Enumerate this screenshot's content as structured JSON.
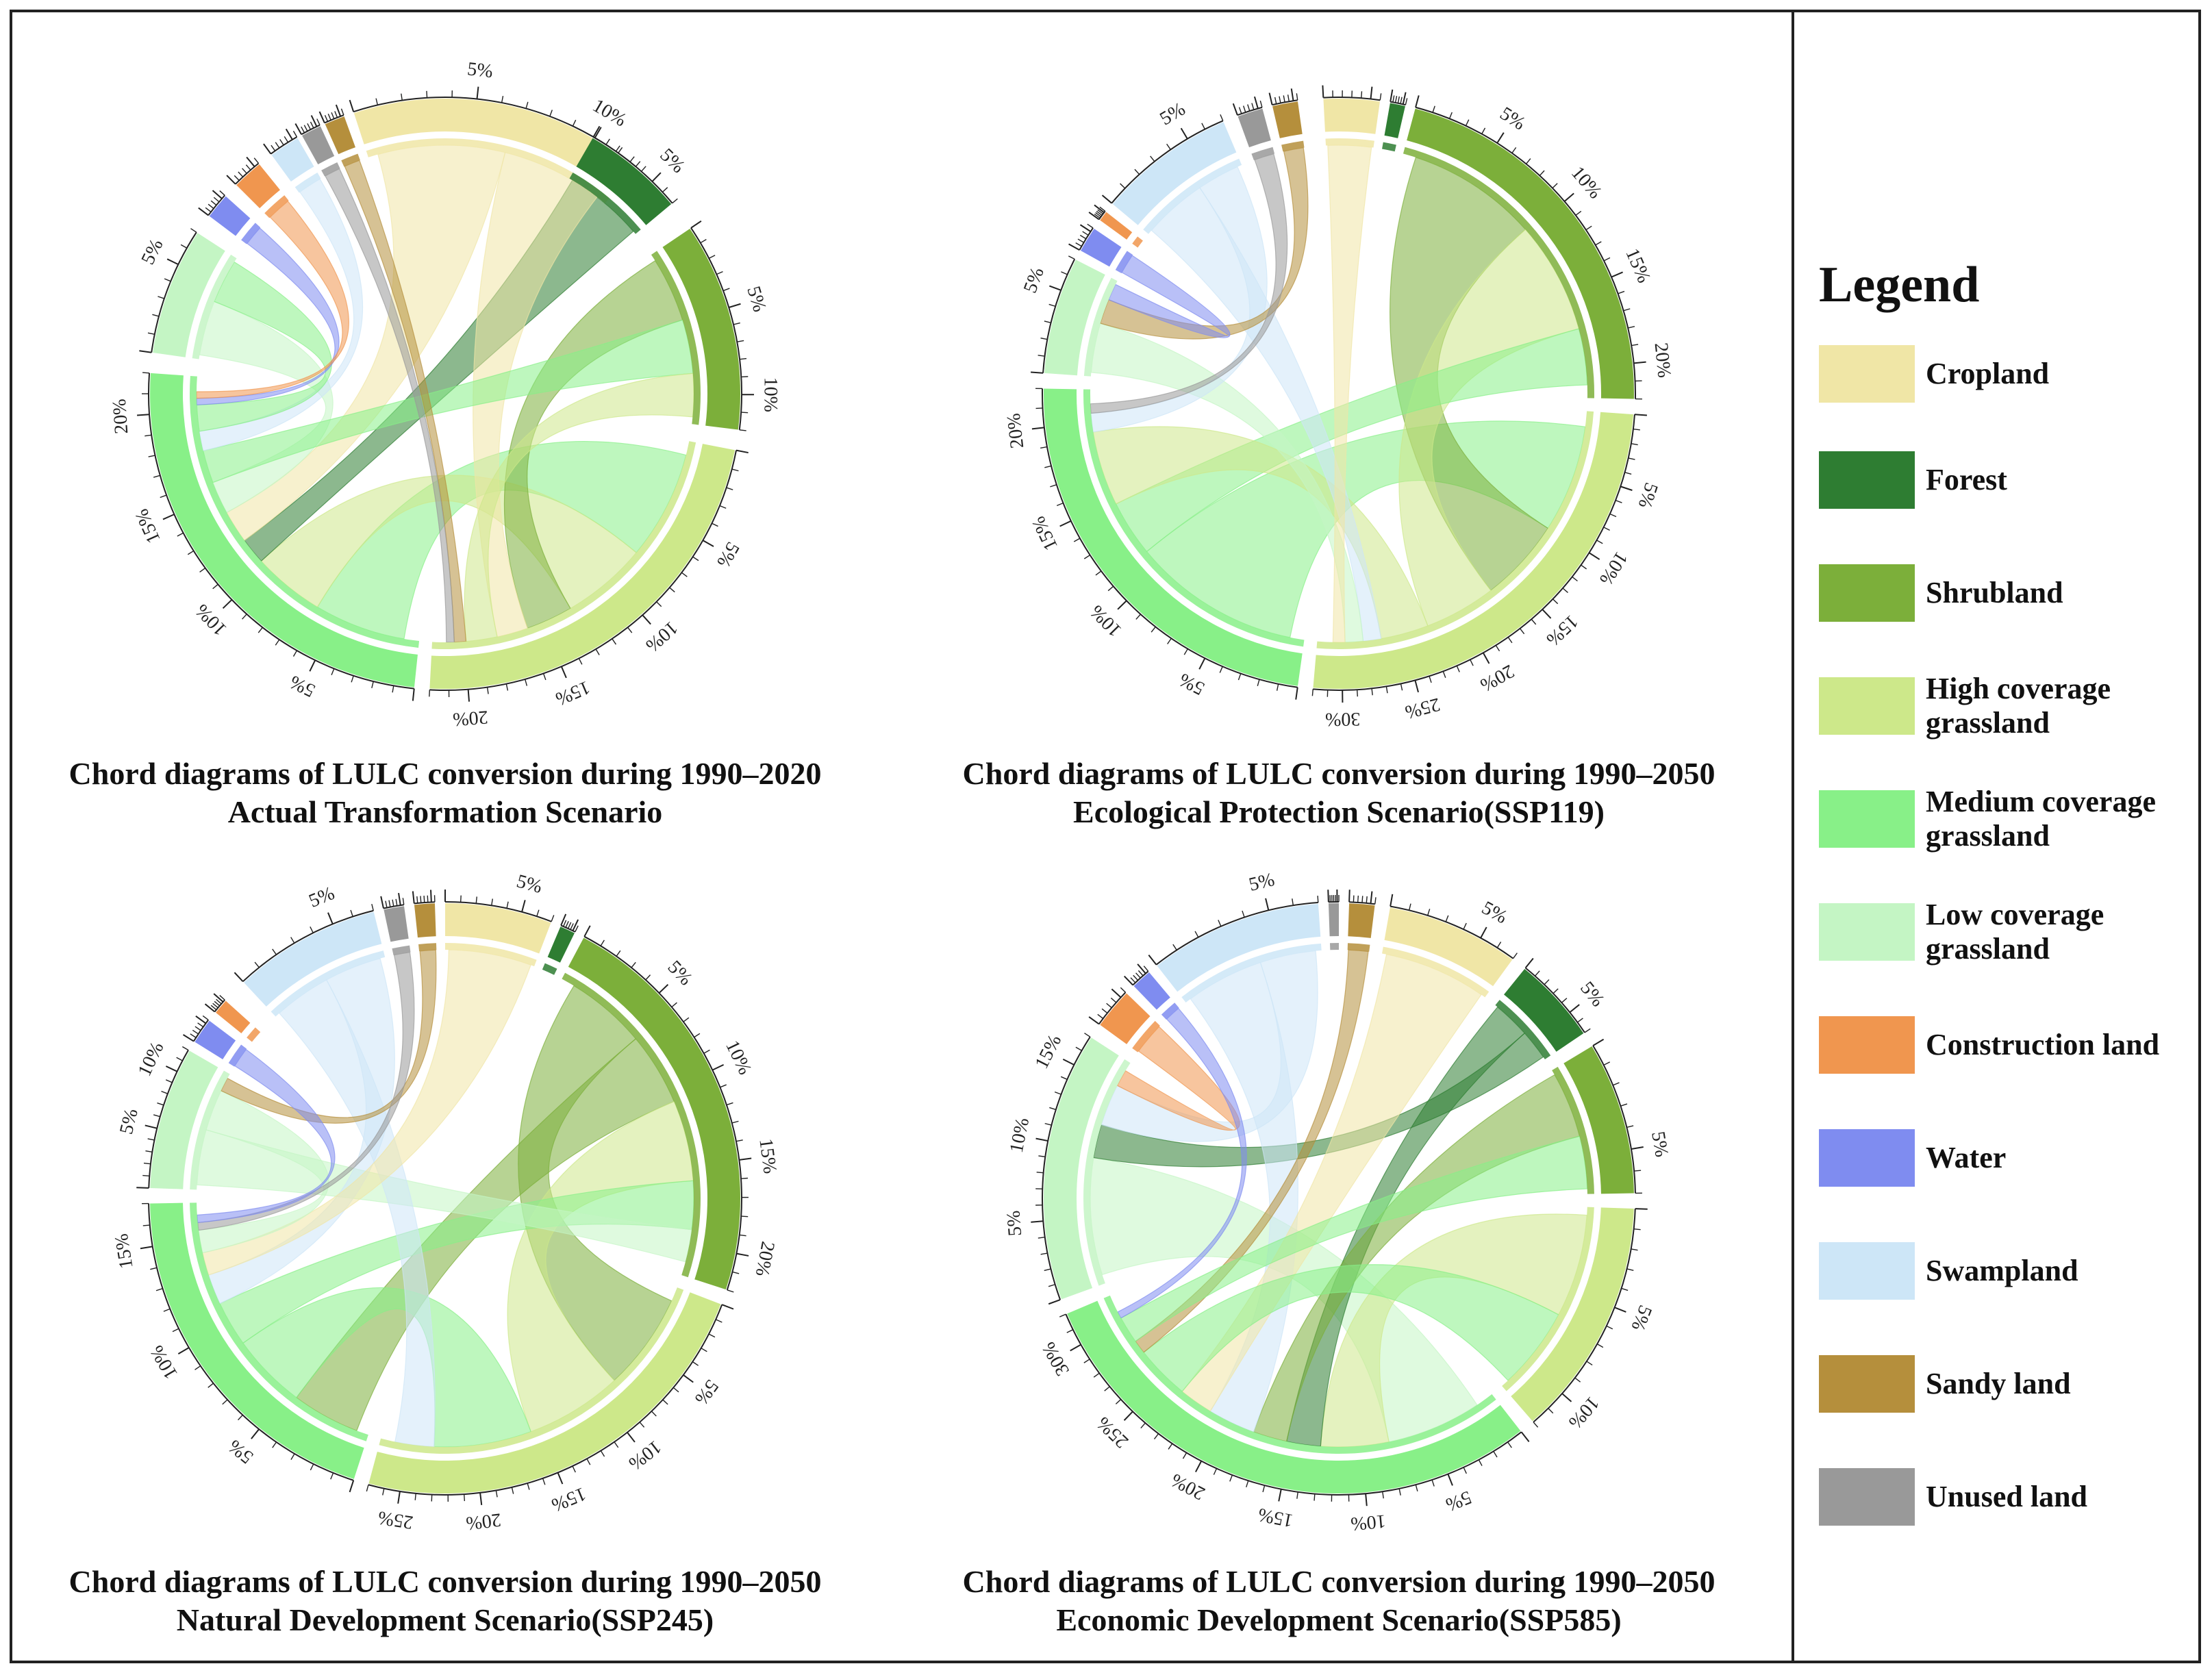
{
  "legend": {
    "title": "Legend",
    "items": [
      {
        "label": "Cropland",
        "color": "#f0e6a6",
        "line2": ""
      },
      {
        "label": "Forest",
        "color": "#2e7d32",
        "line2": ""
      },
      {
        "label": "Shrubland",
        "color": "#7caf3a",
        "line2": ""
      },
      {
        "label": "High coverage",
        "line2": "grassland",
        "color": "#cde88a"
      },
      {
        "label": "Medium coverage",
        "line2": "grassland",
        "color": "#88f088"
      },
      {
        "label": "Low coverage",
        "line2": "grassland",
        "color": "#c4f5c4"
      },
      {
        "label": "Construction land",
        "color": "#f0964f",
        "line2": ""
      },
      {
        "label": "Water",
        "color": "#7f8cf0",
        "line2": ""
      },
      {
        "label": "Swampland",
        "color": "#cde6f7",
        "line2": ""
      },
      {
        "label": "Sandy land",
        "color": "#b58f3c",
        "line2": ""
      },
      {
        "label": "Unused land",
        "color": "#999999",
        "line2": ""
      }
    ]
  },
  "chart_data": [
    {
      "type": "chord",
      "title": "Chord diagrams of LULC conversion during 1990–2020",
      "subtitle": "Actual Transformation Scenario",
      "tick_step_pct": 1,
      "sectors": [
        {
          "name": "Cropland",
          "start_deg": 342,
          "sweep_deg": 58,
          "labels": [
            5,
            10
          ]
        },
        {
          "name": "Forest",
          "start_deg": 30,
          "sweep_deg": 20,
          "labels": [
            5
          ]
        },
        {
          "name": "Shrubland",
          "start_deg": 56,
          "sweep_deg": 41,
          "labels": [
            5,
            10
          ]
        },
        {
          "name": "High coverage grassland",
          "start_deg": 101,
          "sweep_deg": 82,
          "labels": [
            5,
            10,
            15,
            20
          ]
        },
        {
          "name": "Medium coverage grassland",
          "start_deg": 186,
          "sweep_deg": 88,
          "labels": [
            5,
            10,
            15,
            20
          ]
        },
        {
          "name": "Low coverage grassland",
          "start_deg": 278,
          "sweep_deg": 25,
          "labels": [
            5
          ]
        },
        {
          "name": "Water",
          "start_deg": 307,
          "sweep_deg": 5,
          "labels": []
        },
        {
          "name": "Construction land",
          "start_deg": 315,
          "sweep_deg": 6,
          "labels": []
        },
        {
          "name": "Swampland",
          "start_deg": 324,
          "sweep_deg": 6,
          "labels": []
        },
        {
          "name": "Unused land",
          "start_deg": 331,
          "sweep_deg": 4,
          "labels": []
        },
        {
          "name": "Sandy land",
          "start_deg": 336,
          "sweep_deg": 4,
          "labels": []
        }
      ],
      "flows": [
        {
          "from": "Medium coverage grassland",
          "to": "High coverage grassland",
          "value": 14
        },
        {
          "from": "High coverage grassland",
          "to": "Medium coverage grassland",
          "value": 11
        },
        {
          "from": "Shrubland",
          "to": "High coverage grassland",
          "value": 6
        },
        {
          "from": "Forest",
          "to": "Medium coverage grassland",
          "value": 4
        },
        {
          "from": "Cropland",
          "to": "Medium coverage grassland",
          "value": 5
        },
        {
          "from": "Cropland",
          "to": "High coverage grassland",
          "value": 4
        },
        {
          "from": "Low coverage grassland",
          "to": "Medium coverage grassland",
          "value": 5
        },
        {
          "from": "Medium coverage grassland",
          "to": "Shrubland",
          "value": 5
        },
        {
          "from": "Swampland",
          "to": "Medium coverage grassland",
          "value": 3
        },
        {
          "from": "Medium coverage grassland",
          "to": "Low coverage grassland",
          "value": 4
        },
        {
          "from": "High coverage grassland",
          "to": "Shrubland",
          "value": 4
        },
        {
          "from": "Sandy land",
          "to": "High coverage grassland",
          "value": 1.5
        },
        {
          "from": "Water",
          "to": "Medium coverage grassland",
          "value": 1
        },
        {
          "from": "Construction land",
          "to": "Medium coverage grassland",
          "value": 1
        },
        {
          "from": "Unused land",
          "to": "High coverage grassland",
          "value": 1
        }
      ]
    },
    {
      "type": "chord",
      "title": "Chord diagrams of LULC conversion during 1990–2050",
      "subtitle": "Ecological Protection Scenario(SSP119)",
      "tick_step_pct": 1,
      "sectors": [
        {
          "name": "Cropland",
          "start_deg": 357,
          "sweep_deg": 11,
          "labels": []
        },
        {
          "name": "Forest",
          "start_deg": 10,
          "sweep_deg": 3,
          "labels": []
        },
        {
          "name": "Shrubland",
          "start_deg": 15,
          "sweep_deg": 76,
          "labels": [
            5,
            10,
            15,
            20
          ]
        },
        {
          "name": "High coverage grassland",
          "start_deg": 94,
          "sweep_deg": 91,
          "labels": [
            5,
            10,
            15,
            20,
            25,
            30
          ]
        },
        {
          "name": "Medium coverage grassland",
          "start_deg": 188,
          "sweep_deg": 83,
          "labels": [
            5,
            10,
            15,
            20
          ]
        },
        {
          "name": "Low coverage grassland",
          "start_deg": 274,
          "sweep_deg": 23,
          "labels": [
            5
          ]
        },
        {
          "name": "Water",
          "start_deg": 299,
          "sweep_deg": 5,
          "labels": []
        },
        {
          "name": "Construction land",
          "start_deg": 306,
          "sweep_deg": 2,
          "labels": []
        },
        {
          "name": "Swampland",
          "start_deg": 310,
          "sweep_deg": 27,
          "labels": [
            5
          ]
        },
        {
          "name": "Unused land",
          "start_deg": 340,
          "sweep_deg": 5,
          "labels": []
        },
        {
          "name": "Sandy land",
          "start_deg": 347,
          "sweep_deg": 5,
          "labels": []
        }
      ],
      "flows": [
        {
          "from": "Medium coverage grassland",
          "to": "High coverage grassland",
          "value": 18
        },
        {
          "from": "Shrubland",
          "to": "High coverage grassland",
          "value": 14
        },
        {
          "from": "High coverage grassland",
          "to": "Shrubland",
          "value": 12
        },
        {
          "from": "Medium coverage grassland",
          "to": "Shrubland",
          "value": 6
        },
        {
          "from": "High coverage grassland",
          "to": "Medium coverage grassland",
          "value": 8
        },
        {
          "from": "Swampland",
          "to": "High coverage grassland",
          "value": 3
        },
        {
          "from": "Low coverage grassland",
          "to": "High coverage grassland",
          "value": 3
        },
        {
          "from": "Swampland",
          "to": "Medium coverage grassland",
          "value": 2
        },
        {
          "from": "Sandy land",
          "to": "Low coverage grassland",
          "value": 1.5
        },
        {
          "from": "Cropland",
          "to": "High coverage grassland",
          "value": 2
        },
        {
          "from": "Unused land",
          "to": "Medium coverage grassland",
          "value": 1
        },
        {
          "from": "Water",
          "to": "Low coverage grassland",
          "value": 1
        }
      ]
    },
    {
      "type": "chord",
      "title": "Chord diagrams of LULC conversion during 1990–2050",
      "subtitle": "Natural Development Scenario(SSP245)",
      "tick_step_pct": 1,
      "sectors": [
        {
          "name": "Swampland",
          "start_deg": 317,
          "sweep_deg": 29,
          "labels": [
            5
          ]
        },
        {
          "name": "Unused land",
          "start_deg": 348,
          "sweep_deg": 4,
          "labels": []
        },
        {
          "name": "Sandy land",
          "start_deg": 354,
          "sweep_deg": 4,
          "labels": []
        },
        {
          "name": "Cropland",
          "start_deg": 360,
          "sweep_deg": 21,
          "labels": [
            5
          ]
        },
        {
          "name": "Forest",
          "start_deg": 23,
          "sweep_deg": 3,
          "labels": []
        },
        {
          "name": "Shrubland",
          "start_deg": 28,
          "sweep_deg": 80,
          "labels": [
            5,
            10,
            15,
            20
          ]
        },
        {
          "name": "High coverage grassland",
          "start_deg": 111,
          "sweep_deg": 84,
          "labels": [
            5,
            10,
            15,
            20,
            25
          ]
        },
        {
          "name": "Medium coverage grassland",
          "start_deg": 198,
          "sweep_deg": 71,
          "labels": [
            5,
            10,
            15
          ]
        },
        {
          "name": "Low coverage grassland",
          "start_deg": 272,
          "sweep_deg": 28,
          "labels": [
            5,
            10
          ]
        },
        {
          "name": "Water",
          "start_deg": 302,
          "sweep_deg": 5,
          "labels": []
        },
        {
          "name": "Construction land",
          "start_deg": 309,
          "sweep_deg": 3,
          "labels": []
        }
      ],
      "flows": [
        {
          "from": "Shrubland",
          "to": "High coverage grassland",
          "value": 10
        },
        {
          "from": "Shrubland",
          "to": "Medium coverage grassland",
          "value": 9
        },
        {
          "from": "High coverage grassland",
          "to": "Shrubland",
          "value": 10
        },
        {
          "from": "Medium coverage grassland",
          "to": "High coverage grassland",
          "value": 10
        },
        {
          "from": "Medium coverage grassland",
          "to": "Shrubland",
          "value": 6
        },
        {
          "from": "Low coverage grassland",
          "to": "Shrubland",
          "value": 4
        },
        {
          "from": "Swampland",
          "to": "High coverage grassland",
          "value": 4
        },
        {
          "from": "Swampland",
          "to": "Medium coverage grassland",
          "value": 4
        },
        {
          "from": "Cropland",
          "to": "Medium coverage grassland",
          "value": 3
        },
        {
          "from": "Low coverage grassland",
          "to": "Medium coverage grassland",
          "value": 3
        },
        {
          "from": "Sandy land",
          "to": "Low coverage grassland",
          "value": 1
        },
        {
          "from": "Unused land",
          "to": "Medium coverage grassland",
          "value": 1
        },
        {
          "from": "Water",
          "to": "Medium coverage grassland",
          "value": 1
        }
      ]
    },
    {
      "type": "chord",
      "title": "Chord diagrams of LULC conversion during 1990–2050",
      "subtitle": "Economic Development Scenario(SSP585)",
      "tick_step_pct": 1,
      "sectors": [
        {
          "name": "Swampland",
          "start_deg": 322,
          "sweep_deg": 34,
          "labels": [
            5
          ]
        },
        {
          "name": "Unused land",
          "start_deg": 358,
          "sweep_deg": 2,
          "labels": []
        },
        {
          "name": "Sandy land",
          "start_deg": 2,
          "sweep_deg": 5,
          "labels": []
        },
        {
          "name": "Cropland",
          "start_deg": 10,
          "sweep_deg": 26,
          "labels": [
            5
          ]
        },
        {
          "name": "Forest",
          "start_deg": 39,
          "sweep_deg": 17,
          "labels": [
            5
          ]
        },
        {
          "name": "Shrubland",
          "start_deg": 59,
          "sweep_deg": 30,
          "labels": [
            5
          ]
        },
        {
          "name": "High coverage grassland",
          "start_deg": 92,
          "sweep_deg": 47,
          "labels": [
            5,
            10
          ]
        },
        {
          "name": "Medium coverage grassland",
          "start_deg": 142,
          "sweep_deg": 105,
          "labels": [
            5,
            10,
            15,
            20,
            25,
            30
          ]
        },
        {
          "name": "Low coverage grassland",
          "start_deg": 250,
          "sweep_deg": 53,
          "labels": [
            5,
            10,
            15
          ]
        },
        {
          "name": "Construction land",
          "start_deg": 306,
          "sweep_deg": 8,
          "labels": []
        },
        {
          "name": "Water",
          "start_deg": 316,
          "sweep_deg": 4,
          "labels": []
        }
      ],
      "flows": [
        {
          "from": "Low coverage grassland",
          "to": "Medium coverage grassland",
          "value": 14
        },
        {
          "from": "High coverage grassland",
          "to": "Medium coverage grassland",
          "value": 10
        },
        {
          "from": "Forest",
          "to": "Medium coverage grassland",
          "value": 5
        },
        {
          "from": "Forest",
          "to": "Low coverage grassland",
          "value": 4
        },
        {
          "from": "Shrubland",
          "to": "Medium coverage grassland",
          "value": 5
        },
        {
          "from": "Swampland",
          "to": "Medium coverage grassland",
          "value": 7
        },
        {
          "from": "Swampland",
          "to": "Low coverage grassland",
          "value": 5
        },
        {
          "from": "Cropland",
          "to": "Medium coverage grassland",
          "value": 5
        },
        {
          "from": "Medium coverage grassland",
          "to": "High coverage grassland",
          "value": 8
        },
        {
          "from": "Sandy land",
          "to": "Medium coverage grassland",
          "value": 2
        },
        {
          "from": "Construction land",
          "to": "Low coverage grassland",
          "value": 2
        },
        {
          "from": "Medium coverage grassland",
          "to": "Shrubland",
          "value": 4
        },
        {
          "from": "Water",
          "to": "Medium coverage grassland",
          "value": 1
        }
      ]
    }
  ]
}
